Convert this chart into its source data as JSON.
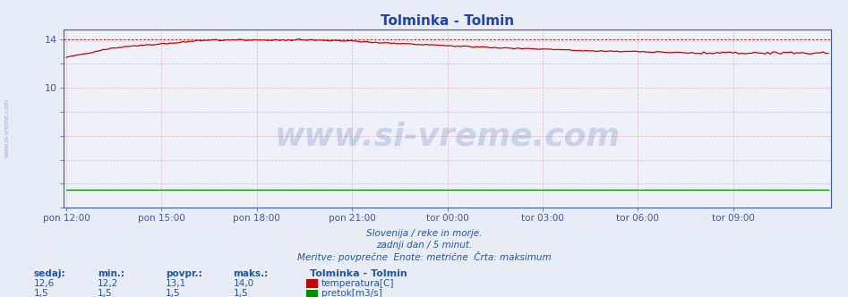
{
  "title": "Tolminka - Tolmin",
  "title_color": "#2244aa",
  "fig_bg_color": "#e8ecf4",
  "plot_bg_color": "#eef2f8",
  "grid_v_color": "#ddaaaa",
  "grid_h_color": "#ddaaaa",
  "x_tick_labels": [
    "pon 12:00",
    "pon 15:00",
    "pon 18:00",
    "pon 21:00",
    "tor 00:00",
    "tor 03:00",
    "tor 06:00",
    "tor 09:00"
  ],
  "x_tick_positions": [
    0,
    36,
    72,
    108,
    144,
    180,
    216,
    252
  ],
  "ytick_pos": [
    0,
    2,
    4,
    6,
    8,
    10,
    12,
    14
  ],
  "ytick_labels": [
    "",
    "",
    "",
    "",
    "",
    "10",
    "",
    "14"
  ],
  "ylim": [
    0,
    14.8
  ],
  "xlim": [
    -1,
    289
  ],
  "temp_max_line": 14.0,
  "temp_color": "#cc0000",
  "flow_color": "#008800",
  "footer_lines": [
    "Slovenija / reke in morje.",
    "zadnji dan / 5 minut.",
    "Meritve: povprečne  Enote: metrične  Črta: maksimum"
  ],
  "footer_color": "#2255aa",
  "watermark": "www.si-vreme.com",
  "legend_title": "Tolminka - Tolmin",
  "text_color": "#2255aa",
  "legend_items": [
    {
      "label": "temperatura[C]",
      "color": "#cc0000"
    },
    {
      "label": "pretok[m3/s]",
      "color": "#008800"
    }
  ],
  "stats_headers": [
    "sedaj:",
    "min.:",
    "povpr.:",
    "maks.:"
  ],
  "stats_temp": [
    "12,6",
    "12,2",
    "13,1",
    "14,0"
  ],
  "stats_flow": [
    "1,5",
    "1,5",
    "1,5",
    "1,5"
  ],
  "axis_color": "#6677aa",
  "spine_color": "#4455aa",
  "left_label": "www.si-vreme.com",
  "left_label_color": "#7788aa"
}
